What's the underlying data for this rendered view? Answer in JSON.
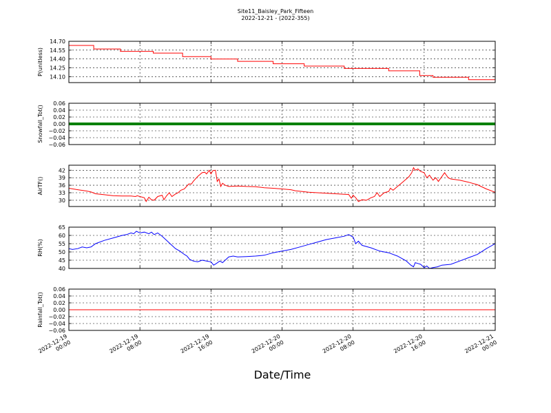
{
  "title": {
    "line1": "Site11_Baisley_Park_Fifteen",
    "line2": "2022-12-21 - (2022-355)"
  },
  "xlabel": "Date/Time",
  "x_tick_labels": [
    [
      "2022-12-19",
      "00:00"
    ],
    [
      "2022-12-19",
      "08:00"
    ],
    [
      "2022-12-19",
      "16:00"
    ],
    [
      "2022-12-20",
      "00:00"
    ],
    [
      "2022-12-20",
      "08:00"
    ],
    [
      "2022-12-20",
      "16:00"
    ],
    [
      "2022-12-21",
      "00:00"
    ]
  ],
  "chart_data": [
    {
      "type": "line",
      "ylabel": "P(unitless)",
      "ylim": [
        14.0,
        14.7
      ],
      "yticks": [
        "14.70",
        "14.55",
        "14.40",
        "14.25",
        "14.10"
      ],
      "grid": true,
      "series": [
        {
          "color": "#ff0000",
          "step": true,
          "points": [
            [
              0,
              14.63
            ],
            [
              2.8,
              14.63
            ],
            [
              2.8,
              14.57
            ],
            [
              5.8,
              14.57
            ],
            [
              5.8,
              14.53
            ],
            [
              9.5,
              14.53
            ],
            [
              9.5,
              14.5
            ],
            [
              12.8,
              14.5
            ],
            [
              12.8,
              14.44
            ],
            [
              16,
              14.44
            ],
            [
              16,
              14.4
            ],
            [
              19,
              14.4
            ],
            [
              19,
              14.36
            ],
            [
              23,
              14.36
            ],
            [
              23,
              14.32
            ],
            [
              26.5,
              14.32
            ],
            [
              26.5,
              14.28
            ],
            [
              31,
              14.28
            ],
            [
              31,
              14.24
            ],
            [
              36,
              14.24
            ],
            [
              36,
              14.2
            ],
            [
              39.5,
              14.2
            ],
            [
              39.5,
              14.12
            ],
            [
              41,
              14.12
            ],
            [
              41,
              14.09
            ],
            [
              45,
              14.09
            ],
            [
              45,
              14.05
            ],
            [
              48,
              14.05
            ]
          ]
        }
      ]
    },
    {
      "type": "scatter",
      "ylabel": "Snowfall_Tot()",
      "ylim": [
        -0.06,
        0.06
      ],
      "yticks": [
        "0.06",
        "0.04",
        "0.02",
        "0.00",
        "−0.02",
        "−0.04",
        "−0.06"
      ],
      "grid": true,
      "series": [
        {
          "color": "#008000",
          "constant": 0.0,
          "x_range": [
            0,
            48
          ],
          "marker": "dot"
        }
      ]
    },
    {
      "type": "line",
      "ylabel": "AirTF()",
      "ylim": [
        27.5,
        44
      ],
      "yticks": [
        "42",
        "39",
        "36",
        "33",
        "30"
      ],
      "grid": true,
      "series": [
        {
          "color": "#ff0000",
          "points": [
            [
              0,
              34.8
            ],
            [
              1,
              34.2
            ],
            [
              2,
              33.7
            ],
            [
              2.5,
              33.3
            ],
            [
              3,
              32.6
            ],
            [
              4,
              32.2
            ],
            [
              5,
              31.8
            ],
            [
              6,
              31.7
            ],
            [
              7,
              31.7
            ],
            [
              7.5,
              31.5
            ],
            [
              7.7,
              31.8
            ],
            [
              8,
              31.5
            ],
            [
              8.5,
              31.0
            ],
            [
              8.7,
              29.5
            ],
            [
              9,
              31.2
            ],
            [
              9.3,
              30.2
            ],
            [
              9.6,
              30.0
            ],
            [
              10,
              31.5
            ],
            [
              10.5,
              32.0
            ],
            [
              10.7,
              30.2
            ],
            [
              11,
              31.8
            ],
            [
              11.3,
              33.0
            ],
            [
              11.6,
              31.5
            ],
            [
              12,
              32.5
            ],
            [
              12.3,
              33.0
            ],
            [
              12.6,
              34.0
            ],
            [
              13,
              34.5
            ],
            [
              13.5,
              36.5
            ],
            [
              13.8,
              36.5
            ],
            [
              14,
              37.5
            ],
            [
              14.5,
              39.5
            ],
            [
              15,
              41.0
            ],
            [
              15.3,
              41.2
            ],
            [
              15.5,
              40.5
            ],
            [
              15.8,
              42.0
            ],
            [
              16,
              40.5
            ],
            [
              16.2,
              41.8
            ],
            [
              16.5,
              42.0
            ],
            [
              16.7,
              37.5
            ],
            [
              16.9,
              38.5
            ],
            [
              17.1,
              35.5
            ],
            [
              17.3,
              36.8
            ],
            [
              17.6,
              36.0
            ],
            [
              18,
              35.5
            ],
            [
              19,
              35.7
            ],
            [
              20,
              35.5
            ],
            [
              21,
              35.4
            ],
            [
              22,
              35.0
            ],
            [
              23,
              34.8
            ],
            [
              24,
              34.5
            ],
            [
              25,
              34.2
            ],
            [
              25.5,
              33.8
            ],
            [
              27,
              33.2
            ],
            [
              28,
              33.0
            ],
            [
              29,
              32.8
            ],
            [
              30,
              32.6
            ],
            [
              31,
              32.4
            ],
            [
              31.5,
              32.3
            ],
            [
              31.8,
              30.8
            ],
            [
              32,
              32.0
            ],
            [
              32.3,
              31.0
            ],
            [
              32.6,
              29.5
            ],
            [
              33,
              30.2
            ],
            [
              33.5,
              30.0
            ],
            [
              34,
              31.0
            ],
            [
              34.4,
              31.5
            ],
            [
              34.7,
              33.0
            ],
            [
              35,
              31.5
            ],
            [
              35.5,
              33.0
            ],
            [
              36,
              33.5
            ],
            [
              36.2,
              34.8
            ],
            [
              36.5,
              34.0
            ],
            [
              37,
              35.5
            ],
            [
              37.5,
              37.0
            ],
            [
              38,
              38.5
            ],
            [
              38.3,
              39.5
            ],
            [
              38.6,
              41.0
            ],
            [
              38.8,
              43.0
            ],
            [
              39,
              42.0
            ],
            [
              39.3,
              42.5
            ],
            [
              39.6,
              41.5
            ],
            [
              40,
              41.0
            ],
            [
              40.3,
              39.0
            ],
            [
              40.6,
              40.0
            ],
            [
              41,
              38.0
            ],
            [
              41.3,
              39.0
            ],
            [
              41.6,
              37.5
            ],
            [
              42,
              39.5
            ],
            [
              42.3,
              41.0
            ],
            [
              42.7,
              39.0
            ],
            [
              43,
              38.5
            ],
            [
              44,
              38.0
            ],
            [
              45,
              37.2
            ],
            [
              46,
              36.2
            ],
            [
              47,
              34.5
            ],
            [
              48,
              33.2
            ]
          ]
        }
      ]
    },
    {
      "type": "line",
      "ylabel": "RH(%)",
      "ylim": [
        40,
        65
      ],
      "yticks": [
        "65",
        "60",
        "55",
        "50",
        "45",
        "40"
      ],
      "grid": true,
      "series": [
        {
          "color": "#0000ff",
          "points": [
            [
              0,
              52.0
            ],
            [
              0.4,
              51.5
            ],
            [
              1,
              52.0
            ],
            [
              1.5,
              53.0
            ],
            [
              2,
              52.5
            ],
            [
              2.5,
              53.0
            ],
            [
              3,
              55.0
            ],
            [
              4,
              57.0
            ],
            [
              5,
              58.5
            ],
            [
              6,
              60.0
            ],
            [
              6.5,
              60.5
            ],
            [
              7,
              61.5
            ],
            [
              7.3,
              61.0
            ],
            [
              7.6,
              62.5
            ],
            [
              8,
              61.5
            ],
            [
              8.5,
              62.0
            ],
            [
              9,
              61.0
            ],
            [
              9.3,
              62.0
            ],
            [
              9.6,
              60.5
            ],
            [
              10,
              61.5
            ],
            [
              10.5,
              59.5
            ],
            [
              11,
              57.0
            ],
            [
              11.5,
              54.5
            ],
            [
              12,
              52.0
            ],
            [
              12.5,
              50.5
            ],
            [
              13,
              48.5
            ],
            [
              13.3,
              47.5
            ],
            [
              13.6,
              45.5
            ],
            [
              14,
              44.5
            ],
            [
              14.5,
              44.0
            ],
            [
              15,
              45.0
            ],
            [
              15.5,
              44.5
            ],
            [
              16,
              44.0
            ],
            [
              16.3,
              42.0
            ],
            [
              16.6,
              43.0
            ],
            [
              17,
              44.5
            ],
            [
              17.3,
              43.5
            ],
            [
              17.6,
              45.0
            ],
            [
              18,
              47.0
            ],
            [
              18.5,
              47.5
            ],
            [
              19,
              47.0
            ],
            [
              20,
              47.2
            ],
            [
              21,
              47.5
            ],
            [
              22,
              48.0
            ],
            [
              23,
              49.5
            ],
            [
              24,
              50.5
            ],
            [
              25,
              51.5
            ],
            [
              26,
              53.0
            ],
            [
              27,
              54.5
            ],
            [
              28,
              56.0
            ],
            [
              29,
              57.5
            ],
            [
              30,
              58.5
            ],
            [
              31,
              59.5
            ],
            [
              31.5,
              60.5
            ],
            [
              32,
              59.0
            ],
            [
              32.3,
              55.0
            ],
            [
              32.6,
              56.5
            ],
            [
              33,
              54.0
            ],
            [
              34,
              52.5
            ],
            [
              35,
              50.5
            ],
            [
              36,
              49.5
            ],
            [
              37,
              47.5
            ],
            [
              38,
              44.5
            ],
            [
              38.5,
              42.0
            ],
            [
              38.8,
              41.0
            ],
            [
              39,
              43.5
            ],
            [
              39.3,
              43.0
            ],
            [
              39.6,
              42.5
            ],
            [
              40,
              40.5
            ],
            [
              40.3,
              41.5
            ],
            [
              40.6,
              40.0
            ],
            [
              41,
              40.5
            ],
            [
              41.5,
              41.0
            ],
            [
              42,
              42.0
            ],
            [
              43,
              42.5
            ],
            [
              44,
              44.5
            ],
            [
              45,
              46.5
            ],
            [
              46,
              48.5
            ],
            [
              47,
              52.0
            ],
            [
              48,
              55.0
            ]
          ]
        }
      ]
    },
    {
      "type": "line",
      "ylabel": "Rainfall_Tot()",
      "ylim": [
        -0.06,
        0.06
      ],
      "yticks": [
        "0.06",
        "0.04",
        "0.02",
        "0.00",
        "−0.02",
        "−0.04",
        "−0.06"
      ],
      "grid": true,
      "series": [
        {
          "color": "#ff0000",
          "points": [
            [
              0,
              0.0
            ],
            [
              48,
              0.0
            ]
          ]
        }
      ]
    }
  ]
}
